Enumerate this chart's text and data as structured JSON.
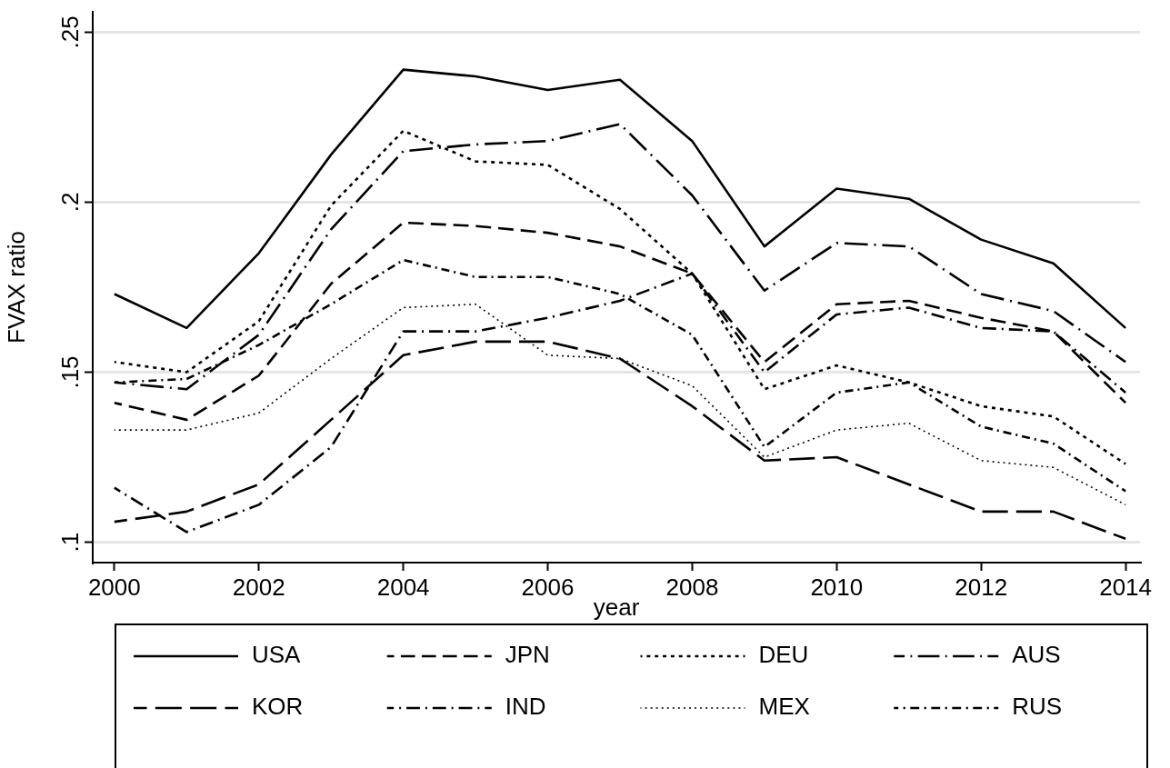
{
  "chart_data": {
    "type": "line",
    "xlabel": "year",
    "ylabel": "FVAX ratio",
    "x": [
      2000,
      2001,
      2002,
      2003,
      2004,
      2005,
      2006,
      2007,
      2008,
      2009,
      2010,
      2011,
      2012,
      2013,
      2014
    ],
    "series": [
      {
        "name": "USA",
        "color": "#000000",
        "line_style": "solid",
        "values": [
          0.173,
          0.163,
          0.185,
          0.214,
          0.239,
          0.237,
          0.233,
          0.236,
          0.218,
          0.187,
          0.204,
          0.201,
          0.189,
          0.182,
          0.163
        ]
      },
      {
        "name": "JPN",
        "color": "#000000",
        "line_style": "dashed",
        "values": [
          0.141,
          0.136,
          0.149,
          0.176,
          0.194,
          0.193,
          0.191,
          0.187,
          0.179,
          0.153,
          0.17,
          0.171,
          0.166,
          0.162,
          0.141
        ]
      },
      {
        "name": "DEU",
        "color": "#000000",
        "line_style": "dotted",
        "values": [
          0.153,
          0.15,
          0.165,
          0.199,
          0.221,
          0.212,
          0.211,
          0.198,
          0.179,
          0.145,
          0.152,
          0.147,
          0.14,
          0.137,
          0.123
        ]
      },
      {
        "name": "AUS",
        "color": "#000000",
        "line_style": "longdashdot",
        "values": [
          0.147,
          0.145,
          0.161,
          0.192,
          0.215,
          0.217,
          0.218,
          0.223,
          0.202,
          0.174,
          0.188,
          0.187,
          0.173,
          0.168,
          0.153
        ]
      },
      {
        "name": "KOR",
        "color": "#000000",
        "line_style": "longdash",
        "values": [
          0.106,
          0.109,
          0.117,
          0.136,
          0.155,
          0.159,
          0.159,
          0.154,
          0.14,
          0.124,
          0.125,
          0.117,
          0.109,
          0.109,
          0.101
        ]
      },
      {
        "name": "IND",
        "color": "#000000",
        "line_style": "dashdot",
        "values": [
          0.116,
          0.103,
          0.111,
          0.128,
          0.162,
          0.162,
          0.166,
          0.171,
          0.179,
          0.15,
          0.167,
          0.169,
          0.163,
          0.162,
          0.144
        ]
      },
      {
        "name": "MEX",
        "color": "#000000",
        "line_style": "finedotted",
        "values": [
          0.133,
          0.133,
          0.138,
          0.154,
          0.169,
          0.17,
          0.155,
          0.154,
          0.146,
          0.125,
          0.133,
          0.135,
          0.124,
          0.122,
          0.111
        ]
      },
      {
        "name": "RUS",
        "color": "#000000",
        "line_style": "shortdashdot",
        "values": [
          0.147,
          0.148,
          0.158,
          0.17,
          0.183,
          0.178,
          0.178,
          0.173,
          0.161,
          0.128,
          0.144,
          0.147,
          0.134,
          0.129,
          0.115
        ]
      }
    ],
    "xlim": [
      1999.7,
      2014.2
    ],
    "xticks": [
      2000,
      2002,
      2004,
      2006,
      2008,
      2010,
      2012,
      2014
    ],
    "ylim": [
      0.094,
      0.256
    ],
    "yticks": [
      {
        "value": 0.1,
        "label": ".1"
      },
      {
        "value": 0.15,
        "label": ".15"
      },
      {
        "value": 0.2,
        "label": ".2"
      },
      {
        "value": 0.25,
        "label": ".25"
      }
    ],
    "grid": "y",
    "legend": "bottom"
  }
}
